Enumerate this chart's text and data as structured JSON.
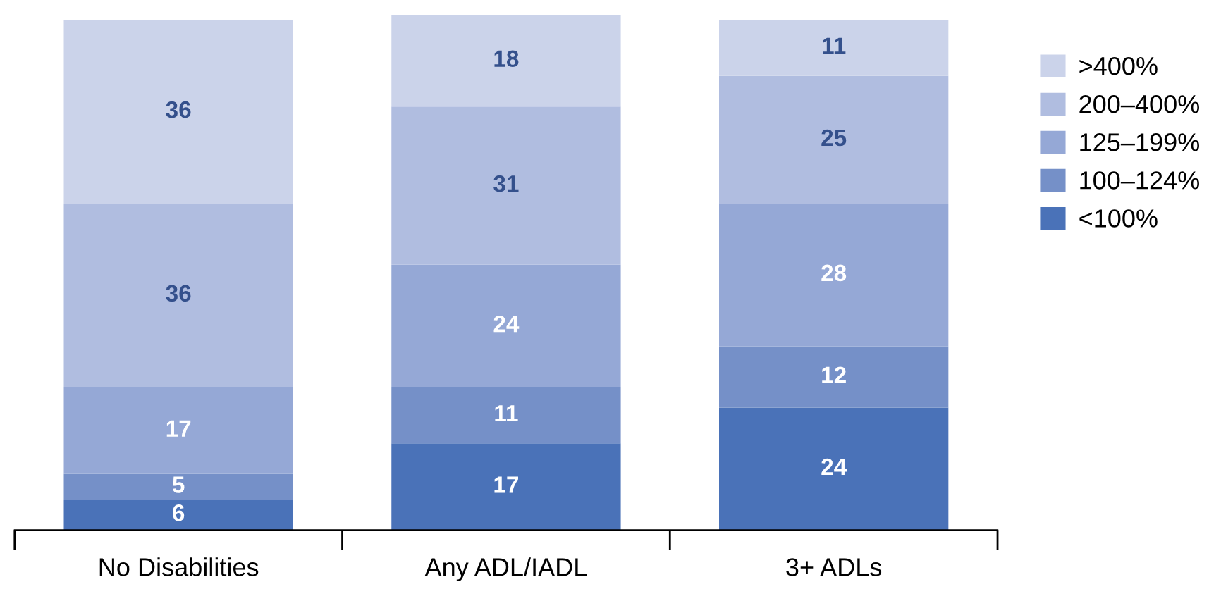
{
  "chart_data": {
    "type": "bar",
    "stacked": true,
    "data_labels": true,
    "legend": "right",
    "grid": false,
    "categories": [
      "No Disabilities",
      "Any ADL/IADL",
      "3+ ADLs"
    ],
    "series": [
      {
        "name": "<100%",
        "color": "#4a72b8",
        "values": [
          6,
          17,
          24
        ]
      },
      {
        "name": "100–124%",
        "color": "#7590c8",
        "values": [
          5,
          11,
          12
        ]
      },
      {
        "name": "125–199%",
        "color": "#95a8d6",
        "values": [
          17,
          24,
          28
        ]
      },
      {
        "name": "200–400%",
        "color": "#b0bde0",
        "values": [
          36,
          31,
          25
        ]
      },
      {
        "name": ">400%",
        "color": "#cbd3ea",
        "values": [
          36,
          18,
          11
        ]
      }
    ]
  }
}
